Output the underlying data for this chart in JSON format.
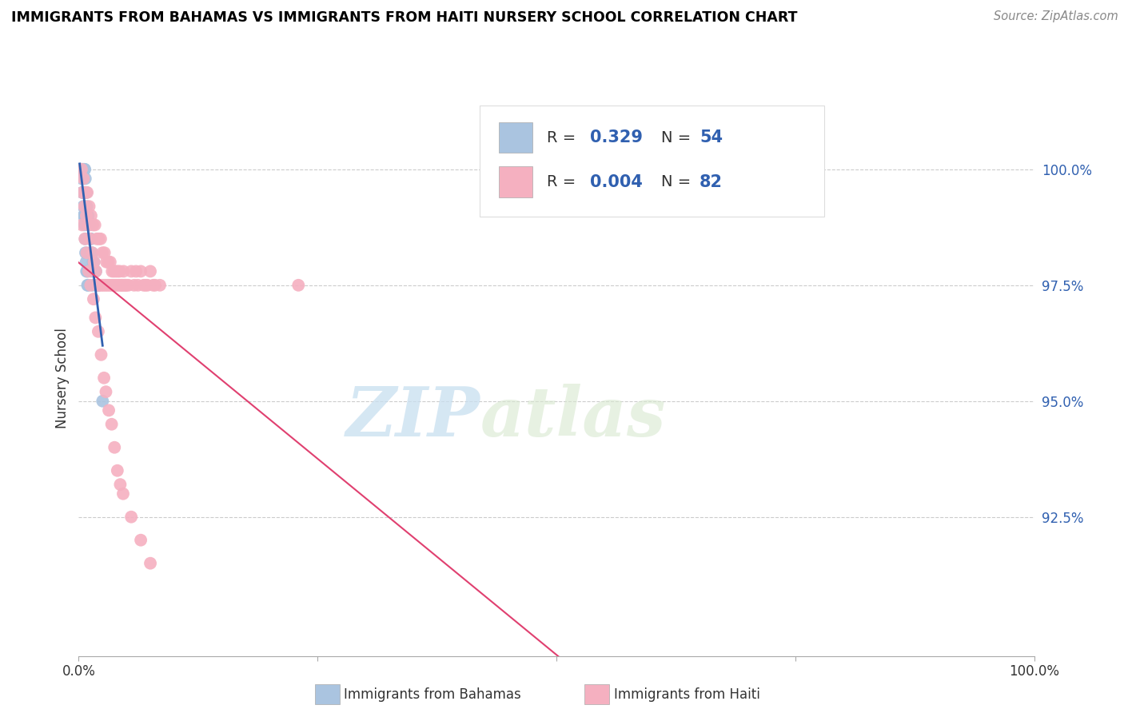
{
  "title": "IMMIGRANTS FROM BAHAMAS VS IMMIGRANTS FROM HAITI NURSERY SCHOOL CORRELATION CHART",
  "source": "Source: ZipAtlas.com",
  "ylabel": "Nursery School",
  "yticks": [
    92.5,
    95.0,
    97.5,
    100.0
  ],
  "ytick_labels": [
    "92.5%",
    "95.0%",
    "97.5%",
    "100.0%"
  ],
  "xlim": [
    0.0,
    100.0
  ],
  "ylim": [
    89.5,
    101.5
  ],
  "blue_color": "#aac4e0",
  "blue_line_color": "#3060b0",
  "pink_color": "#f5b0c0",
  "pink_line_color": "#e04070",
  "legend_label_blue": "Immigrants from Bahamas",
  "legend_label_pink": "Immigrants from Haiti",
  "watermark_zip": "ZIP",
  "watermark_atlas": "atlas",
  "bahamas_x": [
    0.1,
    0.15,
    0.2,
    0.25,
    0.3,
    0.35,
    0.4,
    0.45,
    0.5,
    0.55,
    0.6,
    0.65,
    0.7,
    0.75,
    0.8,
    0.85,
    0.9,
    0.95,
    1.0,
    1.1,
    1.2,
    1.3,
    1.4,
    1.5,
    1.6,
    1.7,
    1.8,
    1.9,
    2.0,
    2.1,
    0.12,
    0.18,
    0.22,
    0.28,
    0.32,
    0.38,
    0.42,
    0.48,
    0.52,
    0.58,
    0.62,
    0.68,
    0.72,
    0.78,
    0.82,
    0.88,
    0.92,
    0.98,
    1.05,
    1.15,
    1.25,
    1.35,
    1.45,
    2.5
  ],
  "bahamas_y": [
    100.0,
    100.0,
    100.0,
    100.0,
    100.0,
    100.0,
    100.0,
    100.0,
    100.0,
    100.0,
    100.0,
    100.0,
    99.8,
    99.5,
    99.5,
    99.2,
    99.0,
    99.0,
    99.0,
    98.8,
    98.5,
    98.5,
    98.2,
    98.0,
    98.0,
    97.8,
    97.8,
    97.5,
    97.5,
    97.5,
    100.0,
    100.0,
    100.0,
    100.0,
    99.8,
    99.5,
    99.5,
    99.2,
    99.0,
    99.0,
    98.8,
    98.5,
    98.2,
    98.0,
    97.8,
    97.8,
    97.5,
    97.5,
    98.8,
    98.5,
    98.2,
    97.8,
    97.5,
    95.0
  ],
  "haiti_x": [
    0.3,
    0.5,
    0.7,
    0.9,
    1.1,
    1.3,
    1.5,
    1.7,
    1.9,
    2.1,
    2.3,
    2.5,
    2.7,
    2.9,
    3.1,
    3.3,
    3.5,
    3.7,
    3.9,
    4.1,
    4.3,
    4.5,
    4.7,
    4.9,
    5.5,
    6.0,
    6.5,
    7.0,
    7.5,
    8.0,
    0.4,
    0.6,
    0.8,
    1.0,
    1.2,
    1.4,
    1.6,
    1.8,
    2.0,
    2.2,
    2.4,
    2.6,
    2.8,
    3.0,
    3.2,
    3.4,
    3.6,
    3.8,
    4.0,
    4.2,
    4.4,
    4.6,
    4.8,
    5.0,
    5.2,
    5.8,
    6.2,
    6.8,
    7.2,
    7.8,
    8.5,
    0.35,
    0.65,
    0.85,
    1.05,
    1.25,
    1.55,
    1.75,
    2.05,
    2.35,
    2.65,
    2.85,
    3.15,
    3.45,
    3.75,
    4.05,
    4.35,
    4.65,
    5.5,
    6.5,
    7.5,
    23.0
  ],
  "haiti_y": [
    100.0,
    99.8,
    99.5,
    99.5,
    99.2,
    99.0,
    98.8,
    98.8,
    98.5,
    98.5,
    98.5,
    98.2,
    98.2,
    98.0,
    98.0,
    98.0,
    97.8,
    97.8,
    97.8,
    97.8,
    97.8,
    97.5,
    97.8,
    97.5,
    97.8,
    97.8,
    97.8,
    97.5,
    97.8,
    97.5,
    99.5,
    99.2,
    99.0,
    98.8,
    98.5,
    98.2,
    98.0,
    97.8,
    97.5,
    97.5,
    97.5,
    97.5,
    97.5,
    97.5,
    97.5,
    97.5,
    97.5,
    97.5,
    97.5,
    97.5,
    97.5,
    97.5,
    97.5,
    97.5,
    97.5,
    97.5,
    97.5,
    97.5,
    97.5,
    97.5,
    97.5,
    98.8,
    98.5,
    98.2,
    97.8,
    97.5,
    97.2,
    96.8,
    96.5,
    96.0,
    95.5,
    95.2,
    94.8,
    94.5,
    94.0,
    93.5,
    93.2,
    93.0,
    92.5,
    92.0,
    91.5,
    97.5
  ]
}
